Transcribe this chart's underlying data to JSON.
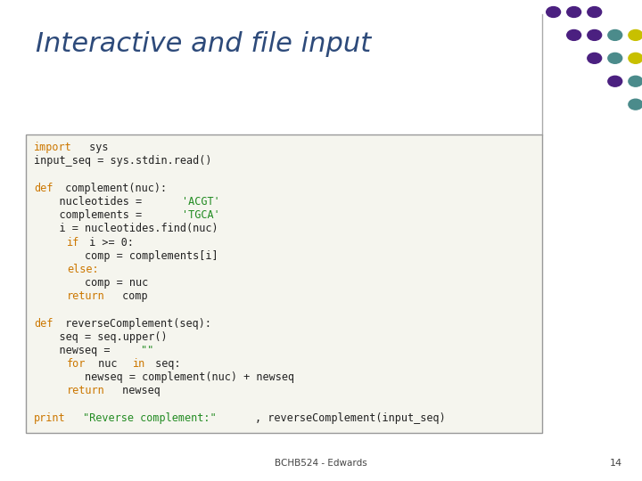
{
  "title": "Interactive and file input",
  "title_color": "#2D4A7A",
  "title_fontsize": 22,
  "background_color": "#FFFFFF",
  "code_box_bg": "#F5F5EE",
  "code_box_border": "#999999",
  "footer_text": "BCHB524 - Edwards",
  "footer_page": "14",
  "keyword_color": "#CC7700",
  "string_color": "#228B22",
  "normal_color": "#222222",
  "code_lines": [
    [
      {
        "t": "import",
        "k": true
      },
      {
        "t": " sys",
        "k": false
      }
    ],
    [
      {
        "t": "input_seq = sys.stdin.read()",
        "k": false
      }
    ],
    [],
    [
      {
        "t": "def",
        "k": true
      },
      {
        "t": " complement(nuc):",
        "k": false
      }
    ],
    [
      {
        "t": "    nucleotides = ",
        "k": false
      },
      {
        "t": "'ACGT'",
        "s": true
      }
    ],
    [
      {
        "t": "    complements = ",
        "k": false
      },
      {
        "t": "'TGCA'",
        "s": true
      }
    ],
    [
      {
        "t": "    i = nucleotides.find(nuc)",
        "k": false
      }
    ],
    [
      {
        "t": "    ",
        "k": false
      },
      {
        "t": "if",
        "k": true
      },
      {
        "t": " i >= 0:",
        "k": false
      }
    ],
    [
      {
        "t": "        comp = complements[i]",
        "k": false
      }
    ],
    [
      {
        "t": "    ",
        "k": false
      },
      {
        "t": "else:",
        "k": true
      }
    ],
    [
      {
        "t": "        comp = nuc",
        "k": false
      }
    ],
    [
      {
        "t": "    ",
        "k": false
      },
      {
        "t": "return",
        "k": true
      },
      {
        "t": " comp",
        "k": false
      }
    ],
    [],
    [
      {
        "t": "def",
        "k": true
      },
      {
        "t": " reverseComplement(seq):",
        "k": false
      }
    ],
    [
      {
        "t": "    seq = seq.upper()",
        "k": false
      }
    ],
    [
      {
        "t": "    newseq = ",
        "k": false
      },
      {
        "t": "\"\"",
        "s": true
      }
    ],
    [
      {
        "t": "    ",
        "k": false
      },
      {
        "t": "for",
        "k": true
      },
      {
        "t": " nuc ",
        "k": false
      },
      {
        "t": "in",
        "k": true
      },
      {
        "t": " seq:",
        "k": false
      }
    ],
    [
      {
        "t": "        newseq = complement(nuc) + newseq",
        "k": false
      }
    ],
    [
      {
        "t": "    ",
        "k": false
      },
      {
        "t": "return",
        "k": true
      },
      {
        "t": " newseq",
        "k": false
      }
    ],
    [],
    [
      {
        "t": "print",
        "k": true
      },
      {
        "t": " ",
        "k": false
      },
      {
        "t": "\"Reverse complement:\"",
        "s": true
      },
      {
        "t": ", reverseComplement(input_seq)",
        "k": false
      }
    ]
  ],
  "dot_rows": [
    [
      {
        "c": "#4B2080"
      },
      {
        "c": "#4B2080"
      },
      {
        "c": "#4B2080"
      }
    ],
    [
      {
        "c": "#4B2080"
      },
      {
        "c": "#4B2080"
      },
      {
        "c": "#4B8B8B"
      },
      {
        "c": "#C8C000"
      }
    ],
    [
      {
        "c": "#4B2080"
      },
      {
        "c": "#4B8B8B"
      },
      {
        "c": "#C8C000"
      },
      {
        "c": "#C8C000"
      }
    ],
    [
      {
        "c": "#4B2080"
      },
      {
        "c": "#4B8B8B"
      },
      {
        "c": "#C8C000"
      },
      {
        "c": "#C8C000"
      },
      {
        "c": "#CCCCCC"
      }
    ],
    [
      {
        "c": "#4B8B8B"
      },
      {
        "c": "#C8C000"
      },
      {
        "c": "#C8C000"
      },
      {
        "c": "#CCCCCC"
      },
      {
        "c": "#CCCCCC"
      }
    ],
    [
      {
        "c": "#4B8B8B"
      },
      {
        "c": "#C8C000"
      },
      {
        "c": "#CCCCCC"
      },
      {
        "c": "#CCCCCC"
      }
    ],
    [
      {
        "c": "#C8C000"
      },
      {
        "c": "#CCCCCC"
      },
      {
        "c": "#CCCCCC"
      }
    ]
  ]
}
